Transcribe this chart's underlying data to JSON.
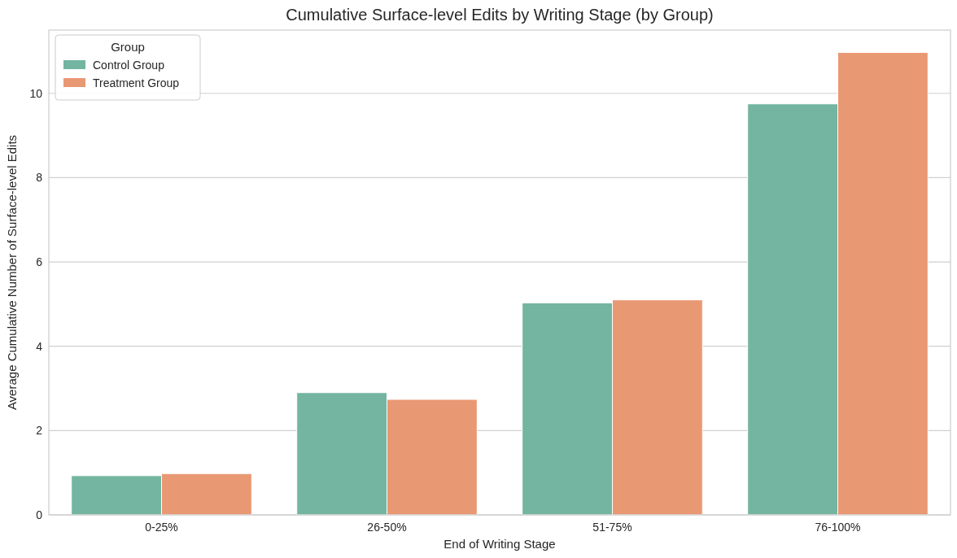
{
  "chart_data": {
    "type": "bar",
    "title": "Cumulative Surface-level Edits by Writing Stage (by Group)",
    "xlabel": "End of Writing Stage",
    "ylabel": "Average Cumulative Number of Surface-level Edits",
    "legend_title": "Group",
    "categories": [
      "0-25%",
      "26-50%",
      "51-75%",
      "76-100%"
    ],
    "series": [
      {
        "name": "Control Group",
        "color": "#73b5a0",
        "values": [
          0.93,
          2.9,
          5.03,
          9.75
        ]
      },
      {
        "name": "Treatment Group",
        "color": "#e99874",
        "values": [
          0.98,
          2.74,
          5.1,
          10.97
        ]
      }
    ],
    "ylim": [
      0,
      11.5
    ],
    "yticks": [
      0,
      2,
      4,
      6,
      8,
      10
    ],
    "grid": "y",
    "legend": "top left"
  }
}
